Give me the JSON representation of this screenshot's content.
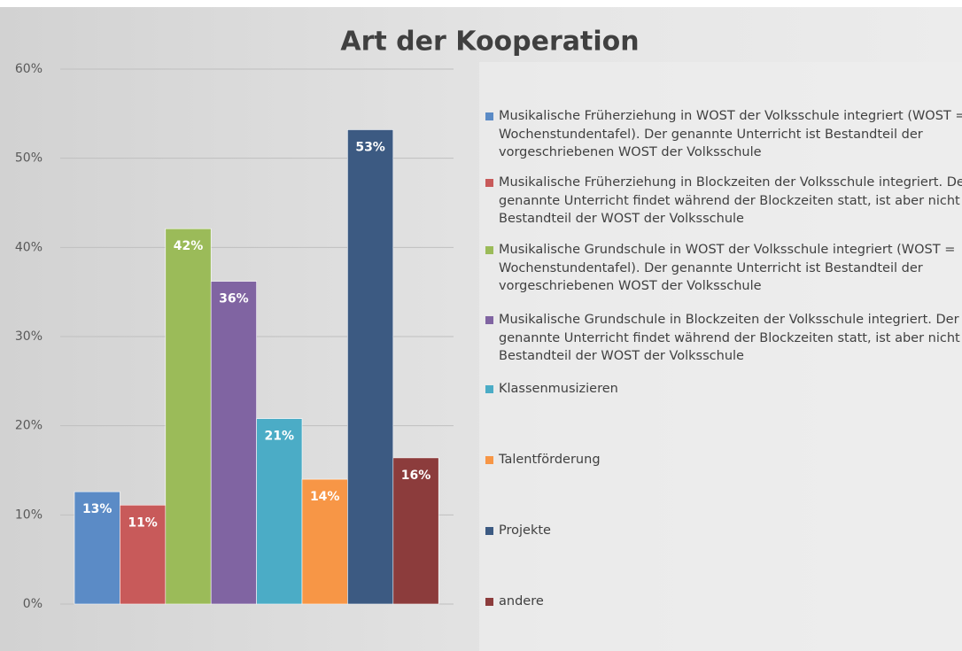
{
  "chart_data": {
    "type": "bar",
    "title": "Art der Kooperation",
    "series": [
      {
        "name": "Musikalische Früherziehung in WOST der Volksschule integriert (WOST = Wochenstundentafel). Der genannte Unterricht ist Bestandteil der vorgeschriebenen WOST der Volksschule",
        "color": "#5b8bc6",
        "values": [
          12.6
        ],
        "value_labels": [
          "13%"
        ]
      },
      {
        "name": "Musikalische Früherziehung in Blockzeiten der Volksschule integriert. Der genannte Unterricht findet während der Blockzeiten statt, ist aber nicht Bestandteil der WOST der Volksschule",
        "color": "#c85a5a",
        "values": [
          11.1
        ],
        "value_labels": [
          "11%"
        ]
      },
      {
        "name": "Musikalische Grundschule in WOST der Volksschule integriert (WOST = Wochenstundentafel). Der genannte Unterricht ist Bestandteil der vorgeschriebenen WOST der Volksschule",
        "color": "#9bbb59",
        "values": [
          42.1
        ],
        "value_labels": [
          "42%"
        ]
      },
      {
        "name": "Musikalische Grundschule in Blockzeiten der Volksschule integriert. Der genannte Unterricht findet während der Blockzeiten statt, ist aber nicht Bestandteil der WOST der Volksschule",
        "color": "#8064a2",
        "values": [
          36.2
        ],
        "value_labels": [
          "36%"
        ]
      },
      {
        "name": "Klassenmusizieren",
        "color": "#4bacc6",
        "values": [
          20.8
        ],
        "value_labels": [
          "21%"
        ]
      },
      {
        "name": "Talentförderung",
        "color": "#f79646",
        "values": [
          14.0
        ],
        "value_labels": [
          "14%"
        ]
      },
      {
        "name": "Projekte",
        "color": "#3c5a82",
        "values": [
          53.2
        ],
        "value_labels": [
          "53%"
        ]
      },
      {
        "name": "andere",
        "color": "#8c3c3c",
        "values": [
          16.4
        ],
        "value_labels": [
          "16%"
        ]
      }
    ],
    "ylim": [
      0,
      60
    ],
    "yticks": [
      {
        "value": 0,
        "label": "0%"
      },
      {
        "value": 10,
        "label": "10%"
      },
      {
        "value": 20,
        "label": "20%"
      },
      {
        "value": 30,
        "label": "30%"
      },
      {
        "value": 40,
        "label": "40%"
      },
      {
        "value": 50,
        "label": "50%"
      },
      {
        "value": 60,
        "label": "60%"
      }
    ],
    "grid": true,
    "legend": "right"
  }
}
